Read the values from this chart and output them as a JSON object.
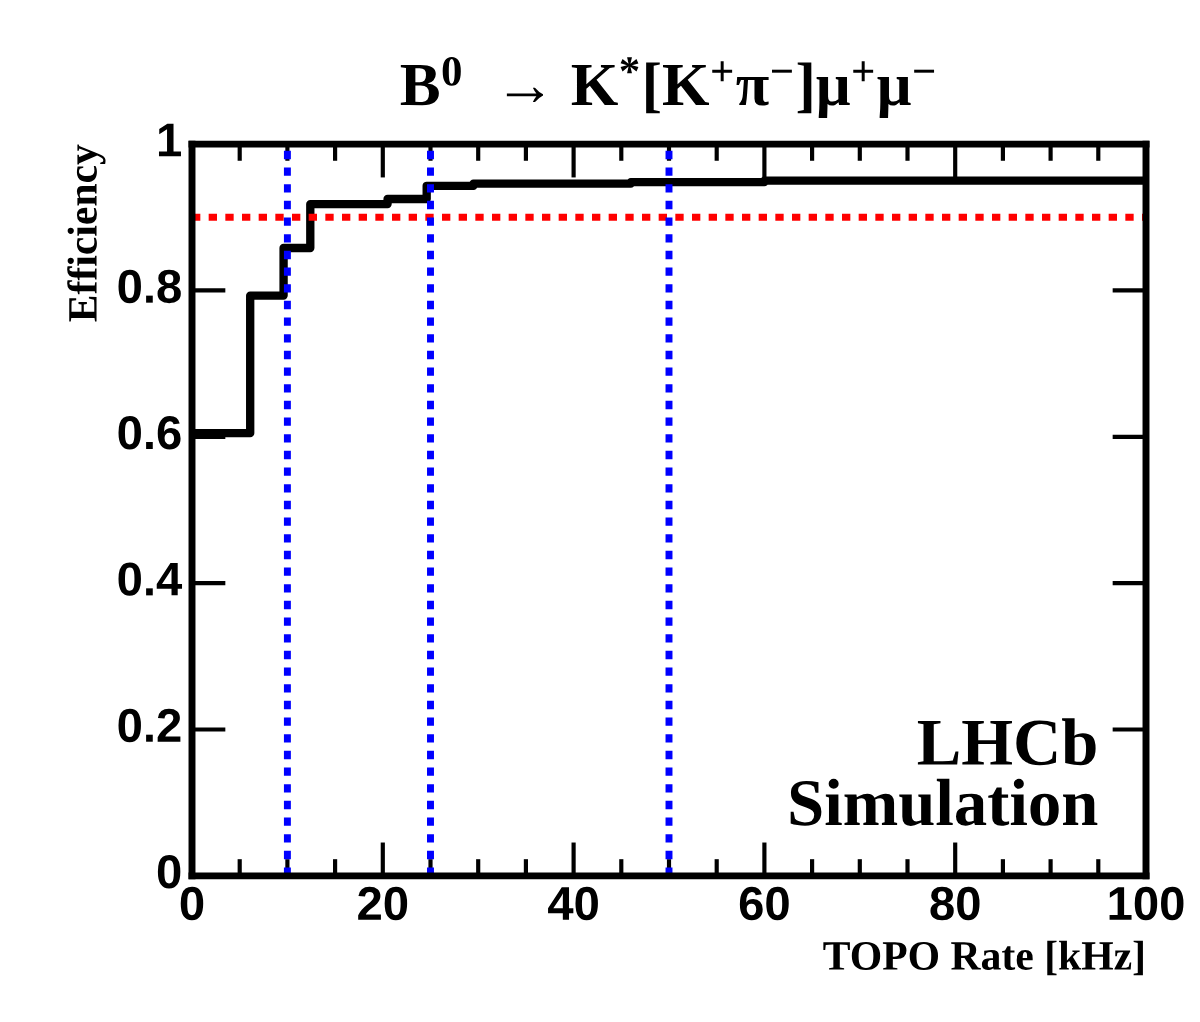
{
  "chart_data": {
    "type": "step",
    "title": "B$^{0}$  → K$^{*}$[K$^{+}$π$^{−}$]μ$^{+}$μ$^{−}$",
    "xlabel": "TOPO Rate [kHz]",
    "ylabel": "Efficiency",
    "x": [
      0,
      6.1,
      9.6,
      12.4,
      20.5,
      24.6,
      29.5,
      46,
      60,
      100
    ],
    "series": [
      {
        "color": "#000000",
        "values": [
          0.605,
          0.793,
          0.858,
          0.918,
          0.925,
          0.943,
          0.946,
          0.948,
          0.95,
          0.95
        ]
      }
    ],
    "xlim": [
      0,
      100
    ],
    "ylim": [
      0,
      1
    ],
    "xticks": [
      0,
      20,
      40,
      60,
      80,
      100
    ],
    "yticks": [
      0,
      0.2,
      0.4,
      0.6,
      0.8,
      1
    ],
    "ref_lines": [
      {
        "axis": "y",
        "value": 0.9,
        "color": "#ff0000",
        "line_style": "dotted"
      },
      {
        "axis": "x",
        "value": 10,
        "color": "#0000ff",
        "line_style": "dotted"
      },
      {
        "axis": "x",
        "value": 25,
        "color": "#0000ff",
        "line_style": "dotted"
      },
      {
        "axis": "x",
        "value": 50,
        "color": "#0000ff",
        "line_style": "dotted"
      }
    ],
    "annotations": [
      "LHCb\nSimulation"
    ],
    "grid": false,
    "legend": false,
    "line_style": "solid"
  }
}
